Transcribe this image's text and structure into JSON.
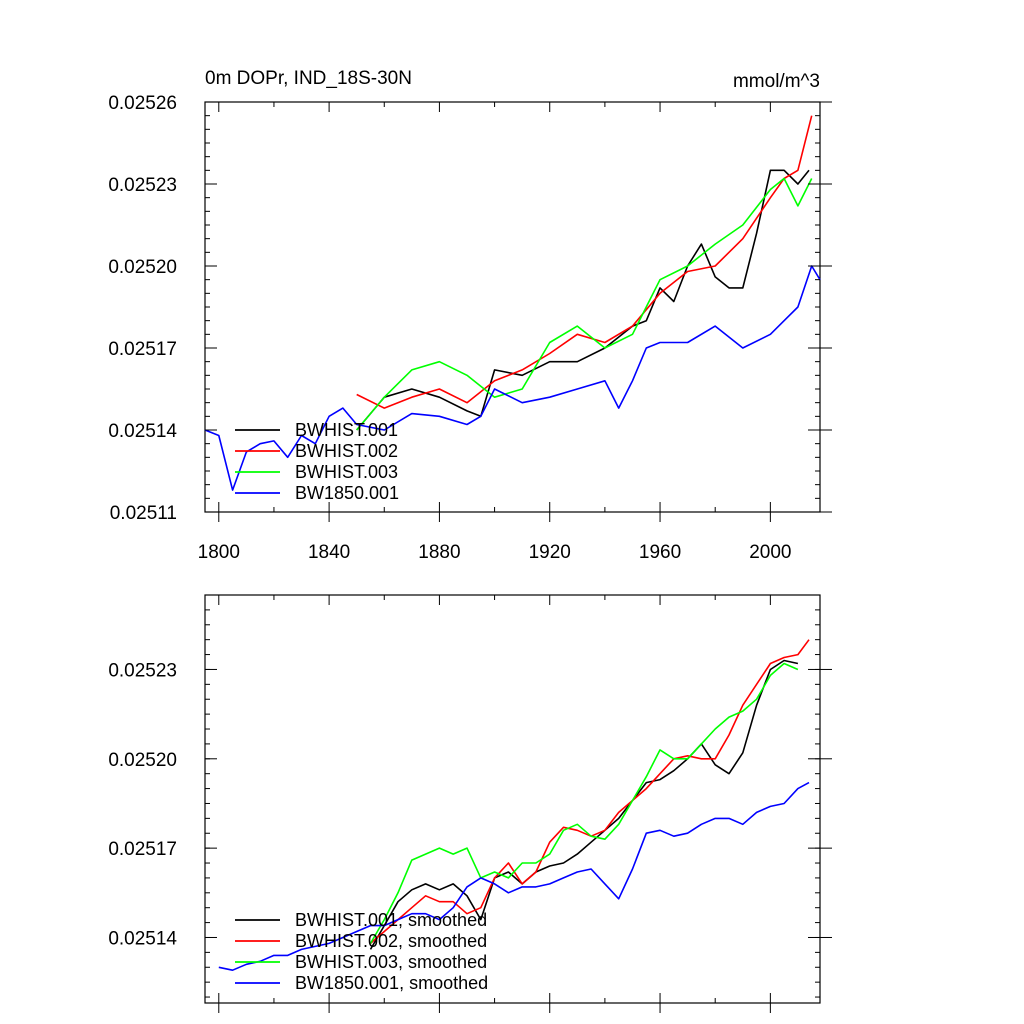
{
  "figure_title": "0m DOPr, IND_18S-30N",
  "units": "mmol/m^3",
  "chart_data": [
    {
      "type": "line",
      "panel": "top",
      "title": "0m DOPr, IND_18S-30N",
      "units_label": "mmol/m^3",
      "xlabel": "",
      "ylabel": "",
      "xlim": [
        1795,
        2018
      ],
      "ylim": [
        0.02511,
        0.02526
      ],
      "x_ticks": [
        1800,
        1840,
        1880,
        1920,
        1960,
        2000
      ],
      "x_tick_labels": [
        "1800",
        "1840",
        "1880",
        "1920",
        "1960",
        "2000"
      ],
      "y_ticks": [
        0.02511,
        0.02514,
        0.02517,
        0.0252,
        0.02523,
        0.02526
      ],
      "y_tick_labels": [
        "0.02511",
        "0.02514",
        "0.02517",
        "0.02520",
        "0.02523",
        "0.02526"
      ],
      "legend_position": "bottom-left",
      "series": [
        {
          "name": "BWHIST.001",
          "color": "#000000",
          "x": [
            1850,
            1860,
            1870,
            1880,
            1890,
            1895,
            1900,
            1910,
            1920,
            1930,
            1940,
            1950,
            1955,
            1960,
            1965,
            1970,
            1975,
            1980,
            1985,
            1990,
            1995,
            2000,
            2005,
            2010,
            2014
          ],
          "values": [
            0.02514,
            0.025152,
            0.025155,
            0.025152,
            0.025147,
            0.025145,
            0.025162,
            0.02516,
            0.025165,
            0.025165,
            0.02517,
            0.025178,
            0.02518,
            0.025192,
            0.025187,
            0.0252,
            0.025208,
            0.025196,
            0.025192,
            0.025192,
            0.025212,
            0.025235,
            0.025235,
            0.02523,
            0.025235
          ]
        },
        {
          "name": "BWHIST.002",
          "color": "#ff0000",
          "x": [
            1850,
            1860,
            1870,
            1880,
            1890,
            1900,
            1910,
            1920,
            1930,
            1940,
            1950,
            1960,
            1970,
            1980,
            1990,
            2000,
            2005,
            2010,
            2015
          ],
          "values": [
            0.025153,
            0.025148,
            0.025152,
            0.025155,
            0.02515,
            0.025158,
            0.025162,
            0.025168,
            0.025175,
            0.025172,
            0.025178,
            0.02519,
            0.025198,
            0.0252,
            0.02521,
            0.025225,
            0.025232,
            0.025235,
            0.025255
          ]
        },
        {
          "name": "BWHIST.003",
          "color": "#00ff00",
          "x": [
            1850,
            1860,
            1870,
            1880,
            1890,
            1900,
            1910,
            1920,
            1930,
            1940,
            1950,
            1960,
            1970,
            1980,
            1990,
            2000,
            2005,
            2010,
            2015
          ],
          "values": [
            0.02514,
            0.025152,
            0.025162,
            0.025165,
            0.02516,
            0.025152,
            0.025155,
            0.025172,
            0.025178,
            0.02517,
            0.025175,
            0.025195,
            0.0252,
            0.025208,
            0.025215,
            0.025228,
            0.025232,
            0.025222,
            0.025232
          ]
        },
        {
          "name": "BW1850.001",
          "color": "#0000ff",
          "x": [
            1795,
            1800,
            1805,
            1810,
            1815,
            1820,
            1825,
            1830,
            1835,
            1840,
            1845,
            1850,
            1860,
            1870,
            1880,
            1890,
            1895,
            1900,
            1910,
            1920,
            1930,
            1940,
            1945,
            1950,
            1955,
            1960,
            1970,
            1980,
            1990,
            2000,
            2005,
            2010,
            2015,
            2018
          ],
          "values": [
            0.02514,
            0.025138,
            0.025118,
            0.025132,
            0.025135,
            0.025136,
            0.02513,
            0.025138,
            0.025135,
            0.025145,
            0.025148,
            0.025142,
            0.02514,
            0.025146,
            0.025145,
            0.025142,
            0.025145,
            0.025155,
            0.02515,
            0.025152,
            0.025155,
            0.025158,
            0.025148,
            0.025158,
            0.02517,
            0.025172,
            0.025172,
            0.025178,
            0.02517,
            0.025175,
            0.02518,
            0.025185,
            0.0252,
            0.025195
          ]
        }
      ]
    },
    {
      "type": "line",
      "panel": "bottom",
      "title": "",
      "xlabel": "",
      "ylabel": "",
      "xlim": [
        1795,
        2018
      ],
      "ylim": [
        0.025118,
        0.025255
      ],
      "x_ticks": [
        1800,
        1840,
        1880,
        1920,
        1960,
        2000
      ],
      "y_ticks": [
        0.02514,
        0.02517,
        0.0252,
        0.02523
      ],
      "y_tick_labels": [
        "0.02514",
        "0.02517",
        "0.02520",
        "0.02523"
      ],
      "legend_position": "bottom-left",
      "series": [
        {
          "name": "BWHIST.001, smoothed",
          "color": "#000000",
          "x": [
            1855,
            1860,
            1865,
            1870,
            1875,
            1880,
            1885,
            1890,
            1895,
            1900,
            1905,
            1910,
            1915,
            1920,
            1925,
            1930,
            1935,
            1940,
            1945,
            1950,
            1955,
            1960,
            1965,
            1970,
            1975,
            1980,
            1985,
            1990,
            1995,
            2000,
            2005,
            2010
          ],
          "values": [
            0.025136,
            0.025144,
            0.025152,
            0.025156,
            0.025158,
            0.025156,
            0.025158,
            0.025154,
            0.025146,
            0.02516,
            0.025162,
            0.025158,
            0.025162,
            0.025164,
            0.025165,
            0.025168,
            0.025172,
            0.025176,
            0.02518,
            0.025186,
            0.025192,
            0.025193,
            0.025196,
            0.0252,
            0.025205,
            0.025198,
            0.025195,
            0.025202,
            0.025218,
            0.02523,
            0.025233,
            0.025232
          ]
        },
        {
          "name": "BWHIST.002, smoothed",
          "color": "#ff0000",
          "x": [
            1855,
            1860,
            1865,
            1870,
            1875,
            1880,
            1885,
            1890,
            1895,
            1900,
            1905,
            1910,
            1915,
            1920,
            1925,
            1930,
            1935,
            1940,
            1945,
            1950,
            1955,
            1960,
            1965,
            1970,
            1975,
            1980,
            1985,
            1990,
            1995,
            2000,
            2005,
            2010,
            2014
          ],
          "values": [
            0.025138,
            0.025142,
            0.025146,
            0.02515,
            0.025154,
            0.025152,
            0.025152,
            0.025148,
            0.02515,
            0.02516,
            0.025165,
            0.025158,
            0.025162,
            0.025172,
            0.025177,
            0.025176,
            0.025174,
            0.025176,
            0.025182,
            0.025186,
            0.02519,
            0.025195,
            0.0252,
            0.025201,
            0.0252,
            0.0252,
            0.025208,
            0.025218,
            0.025225,
            0.025232,
            0.025234,
            0.025235,
            0.02524
          ]
        },
        {
          "name": "BWHIST.003, smoothed",
          "color": "#00ff00",
          "x": [
            1855,
            1860,
            1865,
            1870,
            1875,
            1880,
            1885,
            1890,
            1895,
            1900,
            1905,
            1910,
            1915,
            1920,
            1925,
            1930,
            1935,
            1940,
            1945,
            1950,
            1955,
            1960,
            1965,
            1970,
            1975,
            1980,
            1985,
            1990,
            1995,
            2000,
            2005,
            2010
          ],
          "values": [
            0.025138,
            0.025146,
            0.025155,
            0.025166,
            0.025168,
            0.02517,
            0.025168,
            0.02517,
            0.02516,
            0.025162,
            0.02516,
            0.025165,
            0.025165,
            0.025168,
            0.025176,
            0.025178,
            0.025174,
            0.025173,
            0.025178,
            0.025186,
            0.025194,
            0.025203,
            0.0252,
            0.0252,
            0.025205,
            0.02521,
            0.025214,
            0.025216,
            0.02522,
            0.025228,
            0.025232,
            0.02523
          ]
        },
        {
          "name": "BW1850.001, smoothed",
          "color": "#0000ff",
          "x": [
            1800,
            1805,
            1810,
            1815,
            1820,
            1825,
            1830,
            1835,
            1840,
            1845,
            1850,
            1855,
            1860,
            1865,
            1870,
            1875,
            1880,
            1885,
            1890,
            1895,
            1900,
            1905,
            1910,
            1915,
            1920,
            1925,
            1930,
            1935,
            1940,
            1945,
            1950,
            1955,
            1960,
            1965,
            1970,
            1975,
            1980,
            1985,
            1990,
            1995,
            2000,
            2005,
            2010,
            2014
          ],
          "values": [
            0.02513,
            0.025129,
            0.025131,
            0.025132,
            0.025134,
            0.025134,
            0.025136,
            0.025137,
            0.025138,
            0.02514,
            0.025142,
            0.025144,
            0.025144,
            0.025146,
            0.025148,
            0.025148,
            0.025146,
            0.02515,
            0.025157,
            0.02516,
            0.025158,
            0.025155,
            0.025157,
            0.025157,
            0.025158,
            0.02516,
            0.025162,
            0.025163,
            0.025158,
            0.025153,
            0.025163,
            0.025175,
            0.025176,
            0.025174,
            0.025175,
            0.025178,
            0.02518,
            0.02518,
            0.025178,
            0.025182,
            0.025184,
            0.025185,
            0.02519,
            0.025192
          ]
        }
      ]
    }
  ]
}
